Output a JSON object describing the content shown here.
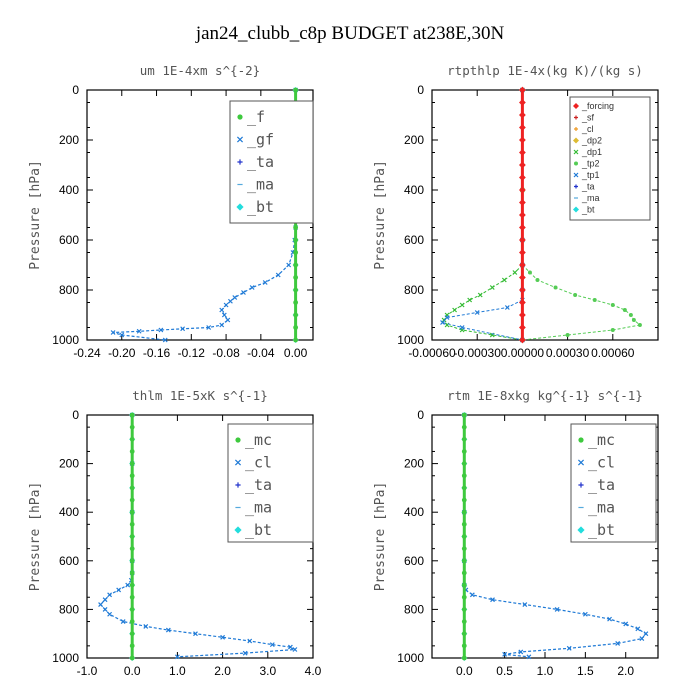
{
  "title": "jan24_clubb_c8p  BUDGET at238E,30N",
  "chart_data": [
    {
      "type": "line",
      "title": "um   1E-4xm s^{-2}",
      "ylabel": "Pressure [hPa]",
      "xlim": [
        -0.24,
        0.02
      ],
      "ylim": [
        1000,
        0
      ],
      "xticks": [
        "-0.24",
        "-0.20",
        "-0.16",
        "-0.12",
        "-0.08",
        "-0.04",
        "0.00"
      ],
      "xtick_values": [
        -0.24,
        -0.2,
        -0.16,
        -0.12,
        -0.08,
        -0.04,
        0.0
      ],
      "yticks": [
        0,
        200,
        400,
        600,
        800,
        1000
      ],
      "legend_size": "big",
      "legend_position": "top-right",
      "series": [
        {
          "name": "_f",
          "color": "#3ec93e",
          "marker": "o",
          "lw": 3,
          "x": [
            0,
            0,
            0,
            0,
            0,
            0,
            0,
            0,
            0,
            0,
            0,
            0,
            0,
            0,
            0,
            0,
            0,
            0,
            0,
            0,
            0
          ],
          "y": [
            0,
            50,
            100,
            150,
            200,
            250,
            300,
            350,
            400,
            450,
            500,
            550,
            600,
            650,
            700,
            750,
            800,
            850,
            900,
            950,
            1000
          ]
        },
        {
          "name": "_gf",
          "color": "#1f7ad6",
          "marker": "x",
          "lw": 1.2,
          "x": [
            0.0,
            0.0,
            0.0,
            0.0,
            0.0,
            0.0,
            0.0,
            0.0,
            0.0,
            -0.001,
            -0.003,
            -0.008,
            -0.02,
            -0.035,
            -0.05,
            -0.06,
            -0.07,
            -0.075,
            -0.08,
            -0.085,
            -0.082,
            -0.078,
            -0.085,
            -0.1,
            -0.13,
            -0.155,
            -0.18,
            -0.21,
            -0.2,
            -0.15
          ],
          "y": [
            0,
            100,
            200,
            300,
            350,
            400,
            450,
            500,
            550,
            600,
            650,
            700,
            740,
            770,
            790,
            810,
            830,
            845,
            860,
            880,
            900,
            920,
            940,
            950,
            955,
            960,
            965,
            970,
            980,
            1000
          ]
        },
        {
          "name": "_ta",
          "color": "#2233cc",
          "marker": "+",
          "lw": 1,
          "x": [
            0,
            0,
            0,
            0,
            0,
            0,
            0,
            0,
            0,
            0,
            0
          ],
          "y": [
            0,
            100,
            200,
            300,
            400,
            500,
            600,
            700,
            800,
            900,
            1000
          ]
        },
        {
          "name": "_ma",
          "color": "#55aadd",
          "marker": "-",
          "lw": 1,
          "x": [
            0,
            0,
            0,
            0,
            0,
            0,
            0,
            0,
            0,
            0,
            0
          ],
          "y": [
            0,
            100,
            200,
            300,
            400,
            500,
            600,
            700,
            800,
            900,
            1000
          ]
        },
        {
          "name": "_bt",
          "color": "#22dddd",
          "marker": "d",
          "lw": 1,
          "x": [
            0,
            0,
            0,
            0,
            0,
            0,
            0,
            0,
            0,
            0,
            0
          ],
          "y": [
            0,
            100,
            200,
            300,
            400,
            500,
            600,
            700,
            800,
            900,
            1000
          ]
        }
      ]
    },
    {
      "type": "line",
      "title": "rtpthlp   1E-4x(kg K)/(kg s)",
      "ylabel": "Pressure [hPa]",
      "xlim": [
        -0.0006,
        0.0009
      ],
      "ylim": [
        1000,
        0
      ],
      "xticks": [
        "-0.00060",
        "-0.00030",
        "0.00000",
        "0.00030",
        "0.00060"
      ],
      "xtick_values": [
        -0.0006,
        -0.0003,
        0.0,
        0.0003,
        0.0006
      ],
      "yticks": [
        0,
        200,
        400,
        600,
        800,
        1000
      ],
      "legend_size": "small",
      "legend_position": "top-right",
      "series": [
        {
          "name": "_forcing",
          "color": "#ee2222",
          "marker": "d",
          "lw": 3,
          "x": [
            0,
            0,
            0,
            0,
            0,
            0,
            0,
            0,
            0,
            0,
            0,
            0,
            0,
            0,
            0,
            0,
            0,
            0,
            0,
            0,
            0
          ],
          "y": [
            0,
            50,
            100,
            150,
            200,
            250,
            300,
            350,
            400,
            450,
            500,
            550,
            600,
            650,
            700,
            750,
            800,
            850,
            900,
            950,
            1000
          ]
        },
        {
          "name": "_sf",
          "color": "#cc2222",
          "marker": "+",
          "lw": 1,
          "x": [
            0,
            0,
            0,
            0,
            0,
            0,
            0,
            0,
            0,
            0,
            0
          ],
          "y": [
            0,
            100,
            200,
            300,
            400,
            500,
            600,
            700,
            800,
            900,
            1000
          ]
        },
        {
          "name": "_cl",
          "color": "#ee9922",
          "marker": "+",
          "lw": 1,
          "x": [
            0,
            0,
            0,
            0,
            0,
            0,
            0,
            0,
            0,
            0,
            0
          ],
          "y": [
            0,
            100,
            200,
            300,
            400,
            500,
            600,
            700,
            800,
            900,
            1000
          ]
        },
        {
          "name": "_dp2",
          "color": "#ddbb33",
          "marker": "d",
          "lw": 1,
          "x": [
            0,
            0,
            0,
            0,
            0,
            0,
            0,
            0,
            0,
            0,
            0
          ],
          "y": [
            0,
            100,
            200,
            300,
            400,
            500,
            600,
            700,
            800,
            900,
            1000
          ]
        },
        {
          "name": "_dp1",
          "color": "#33bb33",
          "marker": "x",
          "lw": 1,
          "x": [
            0,
            0,
            0,
            0,
            -5e-05,
            -0.00012,
            -0.0002,
            -0.00028,
            -0.00035,
            -0.0004,
            -0.00045,
            -0.0005,
            -0.00052,
            -0.0005,
            -0.0004,
            -0.0002,
            0.0
          ],
          "y": [
            0,
            400,
            600,
            700,
            730,
            760,
            790,
            820,
            840,
            860,
            880,
            900,
            920,
            940,
            960,
            980,
            1000
          ]
        },
        {
          "name": "_tp2",
          "color": "#55cc55",
          "marker": "o",
          "lw": 1,
          "x": [
            0,
            0,
            0,
            0,
            5e-05,
            0.0001,
            0.00022,
            0.00035,
            0.00048,
            0.0006,
            0.00068,
            0.00072,
            0.00074,
            0.00078,
            0.0006,
            0.0003,
            0.0
          ],
          "y": [
            0,
            400,
            600,
            700,
            730,
            760,
            790,
            820,
            840,
            860,
            880,
            900,
            920,
            940,
            960,
            980,
            1000
          ]
        },
        {
          "name": "_tp1",
          "color": "#1f7ad6",
          "marker": "x",
          "lw": 1,
          "x": [
            0,
            0,
            0,
            0,
            0,
            -0.0001,
            -0.0003,
            -0.0005,
            -0.00053,
            -0.0004,
            0.0
          ],
          "y": [
            0,
            600,
            700,
            800,
            840,
            870,
            890,
            910,
            930,
            950,
            1000
          ]
        },
        {
          "name": "_ta",
          "color": "#2233cc",
          "marker": "+",
          "lw": 1,
          "x": [
            0,
            0,
            0,
            0,
            0,
            0,
            0,
            0,
            0,
            0,
            0
          ],
          "y": [
            0,
            100,
            200,
            300,
            400,
            500,
            600,
            700,
            800,
            900,
            1000
          ]
        },
        {
          "name": "_ma",
          "color": "#55aadd",
          "marker": "-",
          "lw": 1,
          "x": [
            0,
            0,
            0,
            0,
            0,
            0,
            0,
            0,
            0,
            0,
            0
          ],
          "y": [
            0,
            100,
            200,
            300,
            400,
            500,
            600,
            700,
            800,
            900,
            1000
          ]
        },
        {
          "name": "_bt",
          "color": "#22dddd",
          "marker": "d",
          "lw": 1,
          "x": [
            0,
            0,
            0,
            0,
            0,
            0,
            0,
            0,
            0,
            0,
            0
          ],
          "y": [
            0,
            100,
            200,
            300,
            400,
            500,
            600,
            700,
            800,
            900,
            1000
          ]
        }
      ]
    },
    {
      "type": "line",
      "title": "thlm   1E-5xK s^{-1}",
      "ylabel": "Pressure [hPa]",
      "xlim": [
        -1.0,
        4.0
      ],
      "ylim": [
        1000,
        0
      ],
      "xticks": [
        "-1.0",
        "0.0",
        "1.0",
        "2.0",
        "3.0",
        "4.0"
      ],
      "xtick_values": [
        -1.0,
        0.0,
        1.0,
        2.0,
        3.0,
        4.0
      ],
      "yticks": [
        0,
        200,
        400,
        600,
        800,
        1000
      ],
      "legend_size": "big",
      "legend_position": "top-right",
      "series": [
        {
          "name": "_mc",
          "color": "#3ec93e",
          "marker": "o",
          "lw": 3,
          "x": [
            0,
            0,
            0,
            0,
            0,
            0,
            0,
            0,
            0,
            0,
            0,
            0,
            0,
            0,
            0,
            0,
            0,
            0,
            0,
            0,
            0
          ],
          "y": [
            0,
            50,
            100,
            150,
            200,
            250,
            300,
            350,
            400,
            450,
            500,
            550,
            600,
            650,
            700,
            750,
            800,
            850,
            900,
            950,
            1000
          ]
        },
        {
          "name": "_cl",
          "color": "#1f7ad6",
          "marker": "x",
          "lw": 1.2,
          "x": [
            0,
            0,
            0,
            0,
            0,
            -0.02,
            -0.1,
            -0.3,
            -0.5,
            -0.6,
            -0.7,
            -0.6,
            -0.5,
            -0.2,
            0.3,
            0.8,
            1.4,
            2.0,
            2.6,
            3.1,
            3.5,
            3.6,
            2.5,
            1.0
          ],
          "y": [
            0,
            200,
            400,
            600,
            650,
            680,
            700,
            720,
            740,
            760,
            780,
            800,
            820,
            850,
            870,
            885,
            900,
            915,
            930,
            945,
            955,
            965,
            980,
            995
          ]
        },
        {
          "name": "_ta",
          "color": "#2233cc",
          "marker": "+",
          "lw": 1,
          "x": [
            0,
            0,
            0,
            0,
            0,
            0,
            0,
            0,
            0,
            0,
            0
          ],
          "y": [
            0,
            100,
            200,
            300,
            400,
            500,
            600,
            700,
            800,
            900,
            1000
          ]
        },
        {
          "name": "_ma",
          "color": "#55aadd",
          "marker": "-",
          "lw": 1,
          "x": [
            0,
            0,
            0,
            0,
            0,
            0,
            0,
            0,
            0,
            0,
            0
          ],
          "y": [
            0,
            100,
            200,
            300,
            400,
            500,
            600,
            700,
            800,
            900,
            1000
          ]
        },
        {
          "name": "_bt",
          "color": "#22dddd",
          "marker": "d",
          "lw": 1,
          "x": [
            0,
            0,
            0,
            0,
            0,
            0,
            0,
            0,
            0,
            0,
            0
          ],
          "y": [
            0,
            100,
            200,
            300,
            400,
            500,
            600,
            700,
            800,
            900,
            1000
          ]
        }
      ]
    },
    {
      "type": "line",
      "title": "rtm   1E-8xkg kg^{-1} s^{-1}",
      "ylabel": "Pressure [hPa]",
      "xlim": [
        -0.4,
        2.4
      ],
      "ylim": [
        1000,
        0
      ],
      "xticks": [
        "0.0",
        "0.5",
        "1.0",
        "1.5",
        "2.0"
      ],
      "xtick_values": [
        0.0,
        0.5,
        1.0,
        1.5,
        2.0
      ],
      "yticks": [
        0,
        200,
        400,
        600,
        800,
        1000
      ],
      "legend_size": "big",
      "legend_position": "top-right",
      "series": [
        {
          "name": "_mc",
          "color": "#3ec93e",
          "marker": "o",
          "lw": 3,
          "x": [
            0,
            0,
            0,
            0,
            0,
            0,
            0,
            0,
            0,
            0,
            0,
            0,
            0,
            0,
            0,
            0,
            0,
            0,
            0,
            0,
            0
          ],
          "y": [
            0,
            50,
            100,
            150,
            200,
            250,
            300,
            350,
            400,
            450,
            500,
            550,
            600,
            650,
            700,
            750,
            800,
            850,
            900,
            950,
            1000
          ]
        },
        {
          "name": "_cl",
          "color": "#1f7ad6",
          "marker": "x",
          "lw": 1.2,
          "x": [
            0,
            0,
            0,
            0,
            0.02,
            0.1,
            0.35,
            0.75,
            1.15,
            1.5,
            1.8,
            2.0,
            2.15,
            2.25,
            2.2,
            1.9,
            1.3,
            0.7,
            0.5,
            0.8
          ],
          "y": [
            0,
            400,
            600,
            700,
            720,
            740,
            760,
            780,
            800,
            820,
            840,
            860,
            880,
            900,
            920,
            940,
            960,
            975,
            985,
            995
          ]
        },
        {
          "name": "_ta",
          "color": "#2233cc",
          "marker": "+",
          "lw": 1,
          "x": [
            0,
            0,
            0,
            0,
            0,
            0,
            0,
            0,
            0,
            0,
            0
          ],
          "y": [
            0,
            100,
            200,
            300,
            400,
            500,
            600,
            700,
            800,
            900,
            1000
          ]
        },
        {
          "name": "_ma",
          "color": "#55aadd",
          "marker": "-",
          "lw": 1,
          "x": [
            0,
            0,
            0,
            0,
            0,
            0,
            0,
            0,
            0,
            0,
            0
          ],
          "y": [
            0,
            100,
            200,
            300,
            400,
            500,
            600,
            700,
            800,
            900,
            1000
          ]
        },
        {
          "name": "_bt",
          "color": "#22dddd",
          "marker": "d",
          "lw": 1,
          "x": [
            0,
            0,
            0,
            0,
            0,
            0,
            0,
            0,
            0,
            0,
            0
          ],
          "y": [
            0,
            100,
            200,
            300,
            400,
            500,
            600,
            700,
            800,
            900,
            1000
          ]
        }
      ]
    }
  ]
}
